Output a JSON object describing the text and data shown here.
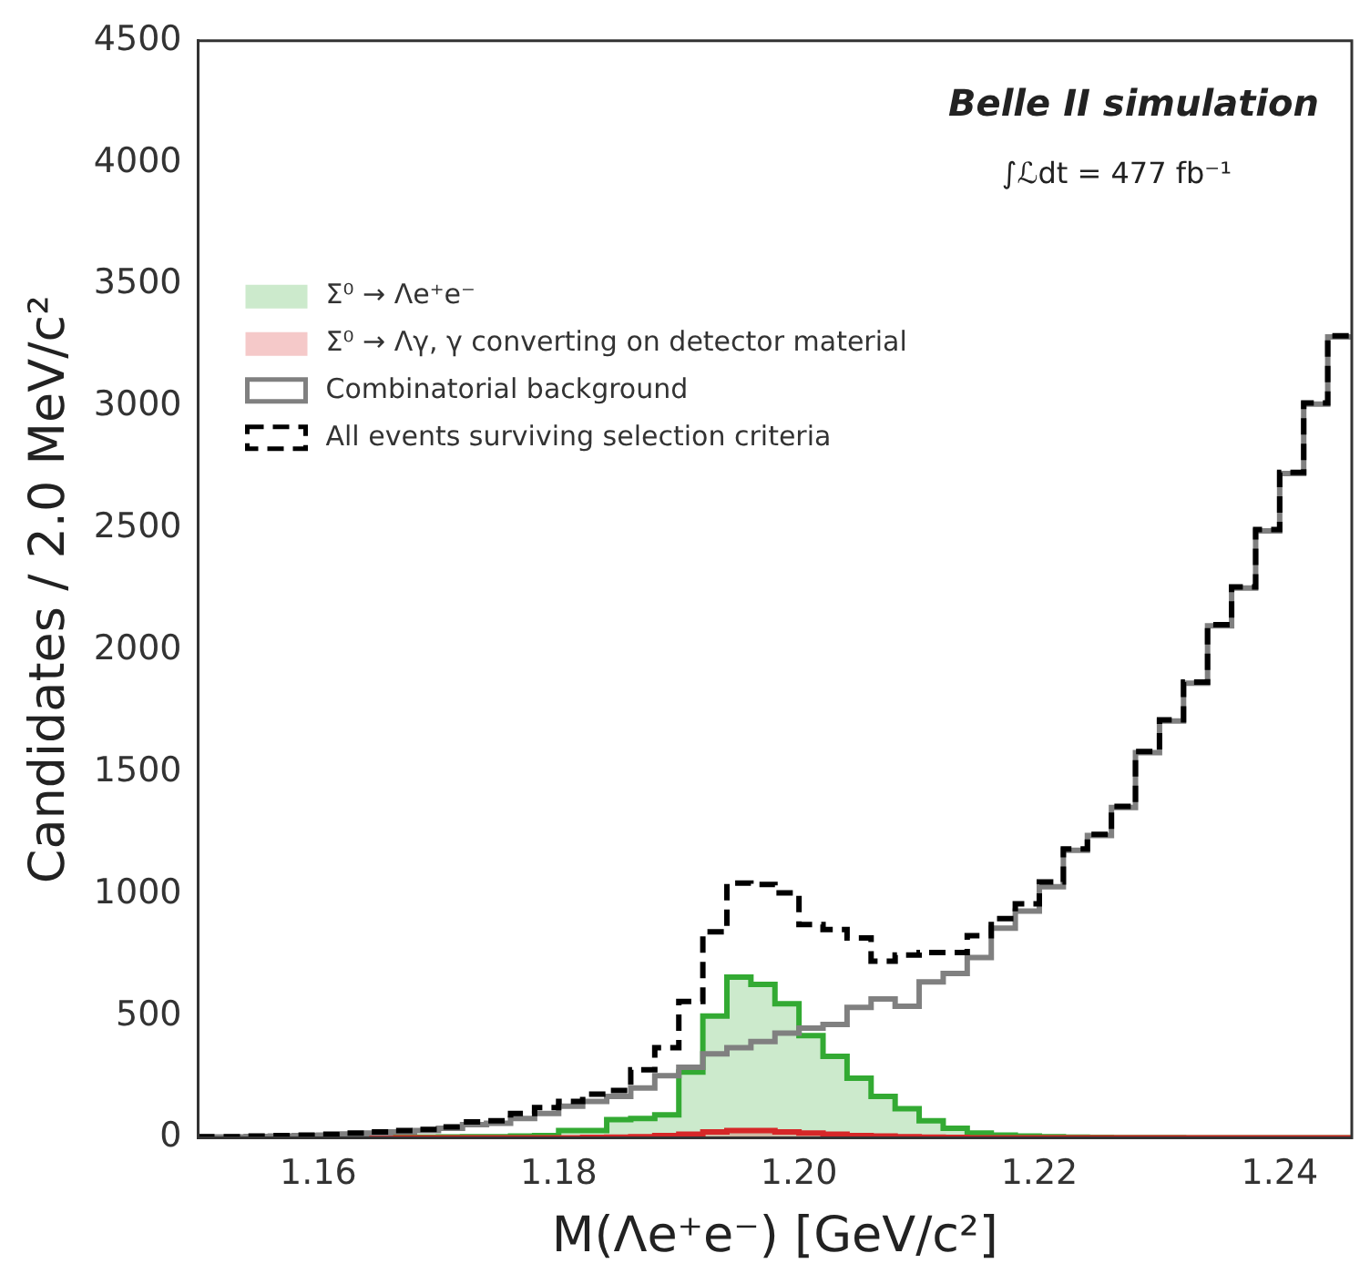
{
  "chart_data": {
    "type": "histogram",
    "xlabel": "M(Λe⁺e⁻) [GeV/c²]",
    "ylabel": "Candidates / 2.0 MeV/c²",
    "annotations": [
      "Belle II simulation",
      "∫ℒdt = 477 fb⁻¹"
    ],
    "bins": [
      1.15,
      1.152,
      1.154,
      1.156,
      1.158,
      1.16,
      1.162,
      1.164,
      1.166,
      1.168,
      1.17,
      1.172,
      1.174,
      1.176,
      1.178,
      1.18,
      1.182,
      1.184,
      1.186,
      1.188,
      1.19,
      1.192,
      1.194,
      1.196,
      1.198,
      1.2,
      1.202,
      1.204,
      1.206,
      1.208,
      1.21,
      1.212,
      1.214,
      1.216,
      1.218,
      1.22,
      1.222,
      1.224,
      1.226,
      1.228,
      1.23,
      1.232,
      1.234,
      1.236,
      1.238,
      1.24,
      1.242,
      1.244,
      1.246
    ],
    "series": [
      {
        "name": "Σ⁰ → Λe⁺e⁻",
        "color": "#33aa33",
        "values": [
          0,
          0,
          0,
          0,
          0,
          0,
          0,
          0,
          2,
          3,
          4,
          5,
          5,
          8,
          10,
          30,
          30,
          75,
          80,
          95,
          270,
          500,
          660,
          630,
          550,
          420,
          335,
          245,
          170,
          120,
          70,
          40,
          20,
          12,
          8,
          5,
          3,
          2,
          1,
          1,
          1,
          0,
          0,
          0,
          0,
          0,
          0,
          0
        ]
      },
      {
        "name": "Σ⁰ → Λγ, γ converting on detector material",
        "color": "#d62728",
        "values": [
          0,
          0,
          0,
          0,
          0,
          0,
          0,
          0,
          0,
          0,
          0,
          0,
          0,
          0,
          0,
          0,
          2,
          3,
          5,
          10,
          15,
          25,
          30,
          30,
          25,
          20,
          15,
          10,
          8,
          5,
          3,
          2,
          0,
          0,
          0,
          0,
          0,
          0,
          0,
          0,
          0,
          0,
          0,
          0,
          0,
          0,
          0,
          0
        ]
      },
      {
        "name": "Combinatorial background",
        "type": "step",
        "color": "#808080",
        "x": [
          1.15,
          1.152,
          1.154,
          1.156,
          1.158,
          1.16,
          1.162,
          1.164,
          1.166,
          1.168,
          1.17,
          1.172,
          1.174,
          1.176,
          1.178,
          1.18,
          1.182,
          1.184,
          1.186,
          1.188,
          1.19,
          1.192,
          1.194,
          1.196,
          1.198,
          1.2,
          1.202,
          1.204,
          1.206,
          1.208,
          1.21,
          1.212,
          1.214,
          1.216,
          1.218,
          1.22,
          1.222,
          1.224,
          1.226,
          1.228,
          1.23,
          1.232,
          1.234,
          1.236,
          1.238,
          1.24,
          1.242,
          1.244,
          1.246
        ],
        "values": [
          4,
          4,
          6,
          8,
          10,
          12,
          16,
          20,
          25,
          30,
          40,
          55,
          60,
          80,
          100,
          130,
          150,
          170,
          205,
          255,
          290,
          345,
          370,
          395,
          430,
          450,
          465,
          535,
          570,
          540,
          640,
          675,
          740,
          860,
          930,
          1030,
          1180,
          1240,
          1355,
          1580,
          1710,
          1865,
          2100,
          2255,
          2490,
          2725,
          3010,
          3285,
          3285
        ]
      },
      {
        "name": "All events surviving selection criteria",
        "type": "step",
        "line_style": "dashed",
        "color": "#000000",
        "x": [
          1.15,
          1.152,
          1.154,
          1.156,
          1.158,
          1.16,
          1.162,
          1.164,
          1.166,
          1.168,
          1.17,
          1.172,
          1.174,
          1.176,
          1.178,
          1.18,
          1.182,
          1.184,
          1.186,
          1.188,
          1.19,
          1.192,
          1.194,
          1.196,
          1.198,
          1.2,
          1.202,
          1.204,
          1.206,
          1.208,
          1.21,
          1.212,
          1.214,
          1.216,
          1.218,
          1.22,
          1.222,
          1.224,
          1.226,
          1.228,
          1.23,
          1.232,
          1.234,
          1.236,
          1.238,
          1.24,
          1.242,
          1.244,
          1.246
        ],
        "values": [
          5,
          5,
          8,
          10,
          12,
          15,
          20,
          25,
          30,
          35,
          45,
          66,
          70,
          100,
          125,
          150,
          180,
          195,
          280,
          370,
          560,
          845,
          1045,
          1040,
          1005,
          875,
          855,
          820,
          725,
          750,
          760,
          760,
          830,
          900,
          960,
          1050,
          1185,
          1245,
          1360,
          1585,
          1715,
          1870,
          2105,
          2260,
          2495,
          2730,
          3015,
          3290,
          3290
        ]
      }
    ],
    "xlim": [
      1.15,
      1.246
    ],
    "xticks": [
      1.16,
      1.18,
      {
        "value": 1.2,
        "label": "1.20"
      },
      1.22,
      1.24
    ],
    "ylim": [
      0,
      4500
    ],
    "yticks": [
      0,
      500,
      1000,
      1500,
      2000,
      2500,
      3000,
      3500,
      4000,
      4500
    ],
    "legend": "top left"
  }
}
